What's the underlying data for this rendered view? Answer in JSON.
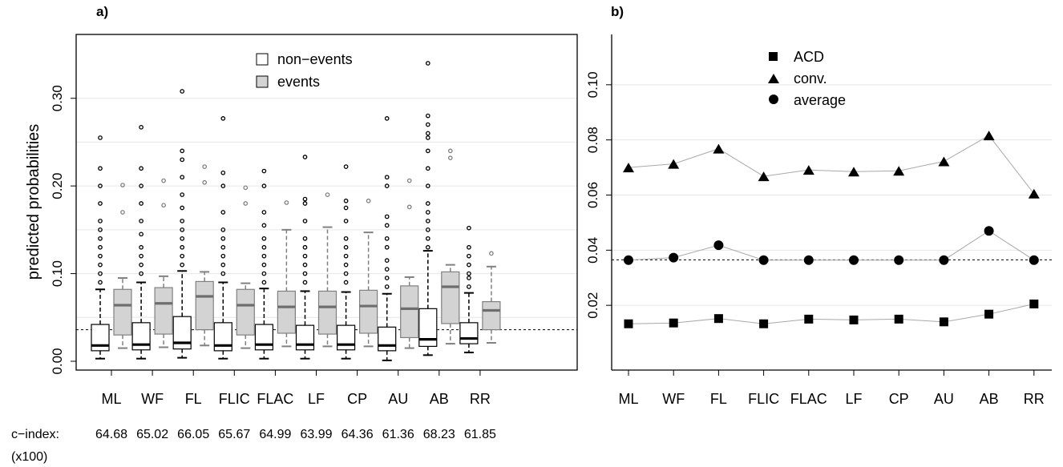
{
  "chart_data": [
    {
      "panel": "a)",
      "type": "box",
      "categories": [
        "ML",
        "WF",
        "FL",
        "FLIC",
        "FLAC",
        "LF",
        "CP",
        "AU",
        "AB",
        "RR"
      ],
      "ylabel": "predicted probabilities",
      "ylim": [
        -0.01,
        0.355
      ],
      "yticks": [
        0.0,
        0.1,
        0.2,
        0.3
      ],
      "ytick_labels": [
        "0.00",
        "0.10",
        "0.20",
        "0.30"
      ],
      "grid": true,
      "reference_line": 0.036,
      "legend": {
        "placement": "top-center",
        "entries": [
          "non−events",
          "events"
        ]
      },
      "series": [
        {
          "name": "non−events",
          "fill": "#ffffff",
          "outlier_color": "#000000",
          "boxes": [
            {
              "q1": 0.012,
              "median": 0.018,
              "q3": 0.042,
              "whisker_low": 0.003,
              "whisker_high": 0.082,
              "outliers": [
                0.09,
                0.1,
                0.11,
                0.12,
                0.13,
                0.14,
                0.15,
                0.16,
                0.18,
                0.2,
                0.22,
                0.255
              ]
            },
            {
              "q1": 0.013,
              "median": 0.019,
              "q3": 0.044,
              "whisker_low": 0.003,
              "whisker_high": 0.09,
              "outliers": [
                0.1,
                0.11,
                0.12,
                0.13,
                0.145,
                0.16,
                0.18,
                0.2,
                0.22,
                0.267
              ]
            },
            {
              "q1": 0.014,
              "median": 0.021,
              "q3": 0.051,
              "whisker_low": 0.004,
              "whisker_high": 0.103,
              "outliers": [
                0.11,
                0.12,
                0.13,
                0.14,
                0.15,
                0.16,
                0.175,
                0.19,
                0.21,
                0.23,
                0.24,
                0.308
              ]
            },
            {
              "q1": 0.012,
              "median": 0.018,
              "q3": 0.044,
              "whisker_low": 0.003,
              "whisker_high": 0.09,
              "outliers": [
                0.1,
                0.11,
                0.12,
                0.13,
                0.14,
                0.15,
                0.17,
                0.2,
                0.215,
                0.277
              ]
            },
            {
              "q1": 0.013,
              "median": 0.019,
              "q3": 0.042,
              "whisker_low": 0.003,
              "whisker_high": 0.083,
              "outliers": [
                0.09,
                0.1,
                0.11,
                0.12,
                0.13,
                0.14,
                0.155,
                0.17,
                0.2,
                0.217
              ]
            },
            {
              "q1": 0.013,
              "median": 0.019,
              "q3": 0.041,
              "whisker_low": 0.003,
              "whisker_high": 0.08,
              "outliers": [
                0.09,
                0.1,
                0.11,
                0.12,
                0.13,
                0.14,
                0.16,
                0.18,
                0.185,
                0.233
              ]
            },
            {
              "q1": 0.013,
              "median": 0.019,
              "q3": 0.041,
              "whisker_low": 0.003,
              "whisker_high": 0.079,
              "outliers": [
                0.09,
                0.1,
                0.11,
                0.12,
                0.13,
                0.14,
                0.16,
                0.175,
                0.183,
                0.222
              ]
            },
            {
              "q1": 0.012,
              "median": 0.018,
              "q3": 0.039,
              "whisker_low": 0.001,
              "whisker_high": 0.077,
              "outliers": [
                0.085,
                0.095,
                0.105,
                0.115,
                0.13,
                0.14,
                0.155,
                0.165,
                0.2,
                0.21,
                0.277
              ]
            },
            {
              "q1": 0.017,
              "median": 0.025,
              "q3": 0.06,
              "whisker_low": 0.007,
              "whisker_high": 0.126,
              "outliers": [
                0.13,
                0.14,
                0.15,
                0.16,
                0.17,
                0.18,
                0.2,
                0.22,
                0.24,
                0.255,
                0.26,
                0.27,
                0.28,
                0.34
              ]
            },
            {
              "q1": 0.02,
              "median": 0.026,
              "q3": 0.044,
              "whisker_low": 0.01,
              "whisker_high": 0.078,
              "outliers": [
                0.085,
                0.095,
                0.1,
                0.11,
                0.12,
                0.13,
                0.152
              ]
            }
          ]
        },
        {
          "name": "events",
          "fill": "#d3d3d3",
          "outlier_color": "#808080",
          "boxes": [
            {
              "q1": 0.03,
              "median": 0.064,
              "q3": 0.082,
              "whisker_low": 0.015,
              "whisker_high": 0.095,
              "outliers": [
                0.17,
                0.201
              ]
            },
            {
              "q1": 0.031,
              "median": 0.066,
              "q3": 0.084,
              "whisker_low": 0.016,
              "whisker_high": 0.097,
              "outliers": [
                0.178,
                0.206
              ]
            },
            {
              "q1": 0.036,
              "median": 0.074,
              "q3": 0.091,
              "whisker_low": 0.018,
              "whisker_high": 0.102,
              "outliers": [
                0.204,
                0.222
              ]
            },
            {
              "q1": 0.03,
              "median": 0.064,
              "q3": 0.082,
              "whisker_low": 0.015,
              "whisker_high": 0.089,
              "outliers": [
                0.18,
                0.198
              ]
            },
            {
              "q1": 0.032,
              "median": 0.062,
              "q3": 0.08,
              "whisker_low": 0.017,
              "whisker_high": 0.15,
              "outliers": [
                0.181
              ]
            },
            {
              "q1": 0.031,
              "median": 0.062,
              "q3": 0.08,
              "whisker_low": 0.017,
              "whisker_high": 0.153,
              "outliers": [
                0.19
              ]
            },
            {
              "q1": 0.032,
              "median": 0.063,
              "q3": 0.081,
              "whisker_low": 0.017,
              "whisker_high": 0.147,
              "outliers": [
                0.183
              ]
            },
            {
              "q1": 0.027,
              "median": 0.06,
              "q3": 0.086,
              "whisker_low": 0.015,
              "whisker_high": 0.096,
              "outliers": [
                0.176,
                0.206
              ]
            },
            {
              "q1": 0.043,
              "median": 0.085,
              "q3": 0.102,
              "whisker_low": 0.02,
              "whisker_high": 0.11,
              "outliers": [
                0.232,
                0.24
              ]
            },
            {
              "q1": 0.036,
              "median": 0.058,
              "q3": 0.068,
              "whisker_low": 0.021,
              "whisker_high": 0.108,
              "outliers": [
                0.123
              ]
            }
          ]
        }
      ],
      "c_index": {
        "label": "c−index:",
        "sublabel": "(x100)",
        "values": [
          "64.68",
          "65.02",
          "66.05",
          "65.67",
          "64.99",
          "63.99",
          "64.36",
          "61.36",
          "68.23",
          "61.85"
        ]
      }
    },
    {
      "panel": "b)",
      "type": "line",
      "categories": [
        "ML",
        "WF",
        "FL",
        "FLIC",
        "FLAC",
        "LF",
        "CP",
        "AU",
        "AB",
        "RR"
      ],
      "ylim": [
        0.0,
        0.12
      ],
      "yticks": [
        0.02,
        0.04,
        0.06,
        0.08,
        0.1
      ],
      "ytick_labels": [
        "0.02",
        "0.04",
        "0.06",
        "0.08",
        "0.10"
      ],
      "grid": true,
      "reference_line": 0.0365,
      "legend": {
        "placement": "top-center"
      },
      "series": [
        {
          "name": "ACD",
          "marker": "square",
          "values": [
            0.0133,
            0.0136,
            0.0152,
            0.0133,
            0.015,
            0.0147,
            0.015,
            0.014,
            0.0168,
            0.0205
          ]
        },
        {
          "name": "conv.",
          "marker": "triangle",
          "values": [
            0.07,
            0.0713,
            0.0768,
            0.0668,
            0.0691,
            0.0685,
            0.0688,
            0.0722,
            0.0816,
            0.0605
          ]
        },
        {
          "name": "average",
          "marker": "circle",
          "values": [
            0.0364,
            0.0373,
            0.0418,
            0.0364,
            0.0364,
            0.0364,
            0.0364,
            0.0364,
            0.047,
            0.0364
          ]
        }
      ]
    }
  ]
}
